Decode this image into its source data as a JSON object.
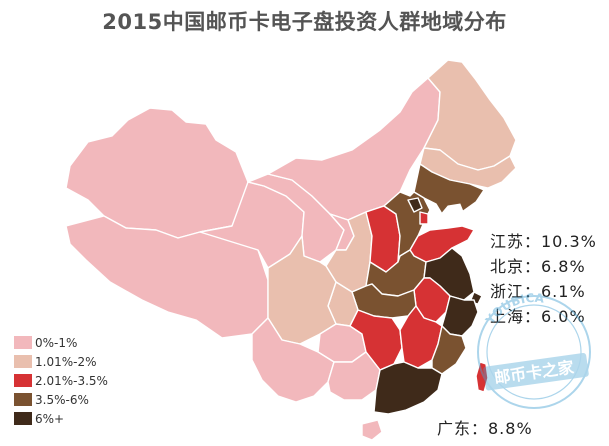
{
  "title": "2015中国邮币卡电子盘投资人群地域分布",
  "colors": {
    "tier1": "#f2b8bc",
    "tier2": "#e9bfae",
    "tier3": "#d63234",
    "tier4": "#7a5230",
    "tier5": "#3f2a1a"
  },
  "legend": [
    {
      "label": "0%-1%",
      "tier": "tier1"
    },
    {
      "label": "1.01%-2%",
      "tier": "tier2"
    },
    {
      "label": "2.01%-3.5%",
      "tier": "tier3"
    },
    {
      "label": "3.5%-6%",
      "tier": "tier4"
    },
    {
      "label": "6%+",
      "tier": "tier5"
    }
  ],
  "callouts": [
    {
      "text": "江苏：10.3%"
    },
    {
      "text": "北京：6.8%"
    },
    {
      "text": "浙江：6.1%"
    },
    {
      "text": "上海：6.0%"
    }
  ],
  "callout_guangdong": {
    "text": "广东：8.8%"
  },
  "regions": {
    "xinjiang": "tier1",
    "tibet": "tier1",
    "qinghai": "tier1",
    "gansu": "tier1",
    "inner_mongolia": "tier1",
    "ningxia": "tier1",
    "heilongjiang": "tier2",
    "jilin": "tier2",
    "liaoning": "tier4",
    "beijing": "tier5",
    "tianjin": "tier3",
    "hebei": "tier4",
    "shanxi": "tier3",
    "shaanxi": "tier2",
    "sichuan": "tier2",
    "chongqing": "tier2",
    "yunnan": "tier1",
    "guizhou": "tier1",
    "guangxi": "tier1",
    "guangdong": "tier5",
    "hainan": "tier1",
    "hunan": "tier3",
    "hubei": "tier4",
    "henan": "tier4",
    "shandong": "tier3",
    "anhui": "tier3",
    "jiangsu": "tier5",
    "shanghai": "tier5",
    "zhejiang": "tier5",
    "jiangxi": "tier3",
    "fujian": "tier4",
    "taiwan": "tier3"
  },
  "watermark": {
    "text": "邮币卡之家",
    "arc_text": "YOUBICA"
  }
}
